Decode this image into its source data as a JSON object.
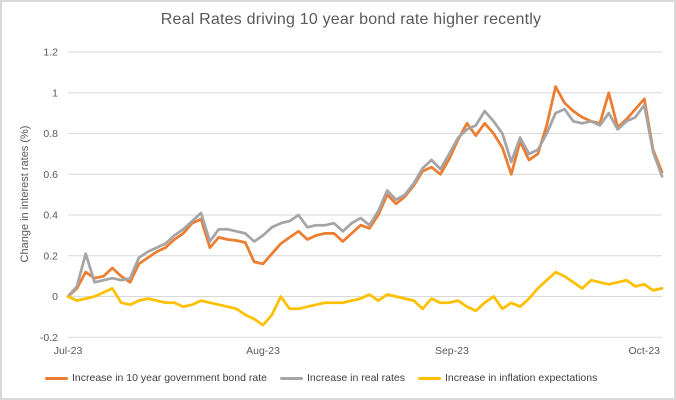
{
  "chart_data": {
    "type": "line",
    "title": "Real Rates driving 10 year bond rate higher recently",
    "ylabel": "Change in interest rates (%)",
    "xlabel": "",
    "ylim": [
      -0.2,
      1.2
    ],
    "ytick_step": 0.2,
    "yticks": [
      "1.2",
      "1",
      "0.8",
      "0.6",
      "0.4",
      "0.2",
      "0",
      "-0.2"
    ],
    "xticks": [
      {
        "label": "Jul-23",
        "index": 0
      },
      {
        "label": "Aug-23",
        "index": 22
      },
      {
        "label": "Sep-23",
        "index": 43.3
      },
      {
        "label": "Oct-23",
        "index": 65
      }
    ],
    "grid": true,
    "legend_position": "bottom",
    "series": [
      {
        "id": "bond-rate",
        "name": "Increase in 10 year government bond rate",
        "color": "#ED7D31",
        "values": [
          0.0,
          0.04,
          0.12,
          0.09,
          0.1,
          0.14,
          0.1,
          0.07,
          0.16,
          0.19,
          0.22,
          0.24,
          0.28,
          0.31,
          0.36,
          0.38,
          0.24,
          0.29,
          0.28,
          0.275,
          0.265,
          0.17,
          0.16,
          0.21,
          0.26,
          0.29,
          0.32,
          0.28,
          0.3,
          0.31,
          0.31,
          0.27,
          0.31,
          0.35,
          0.335,
          0.4,
          0.5,
          0.455,
          0.49,
          0.545,
          0.615,
          0.635,
          0.6,
          0.675,
          0.77,
          0.85,
          0.79,
          0.85,
          0.8,
          0.73,
          0.6,
          0.76,
          0.67,
          0.7,
          0.84,
          1.03,
          0.95,
          0.91,
          0.88,
          0.86,
          0.85,
          1.0,
          0.83,
          0.87,
          0.92,
          0.97,
          0.72,
          0.61
        ]
      },
      {
        "id": "real-rates",
        "name": "Increase in real rates",
        "color": "#A5A5A5",
        "values": [
          0.0,
          0.05,
          0.21,
          0.07,
          0.08,
          0.09,
          0.08,
          0.09,
          0.19,
          0.22,
          0.24,
          0.26,
          0.3,
          0.33,
          0.37,
          0.41,
          0.27,
          0.33,
          0.33,
          0.32,
          0.31,
          0.27,
          0.3,
          0.34,
          0.36,
          0.37,
          0.4,
          0.34,
          0.35,
          0.35,
          0.36,
          0.32,
          0.36,
          0.385,
          0.35,
          0.42,
          0.52,
          0.475,
          0.5,
          0.555,
          0.63,
          0.67,
          0.625,
          0.7,
          0.78,
          0.82,
          0.84,
          0.91,
          0.86,
          0.8,
          0.66,
          0.78,
          0.7,
          0.72,
          0.8,
          0.9,
          0.92,
          0.86,
          0.85,
          0.86,
          0.84,
          0.9,
          0.82,
          0.86,
          0.88,
          0.94,
          0.71,
          0.59
        ]
      },
      {
        "id": "inflation-expectations",
        "name": "Increase in inflation expectations",
        "color": "#FFC000",
        "values": [
          0.0,
          -0.02,
          -0.01,
          0.0,
          0.02,
          0.04,
          -0.03,
          -0.04,
          -0.02,
          -0.01,
          -0.02,
          -0.03,
          -0.03,
          -0.05,
          -0.04,
          -0.02,
          -0.03,
          -0.04,
          -0.05,
          -0.06,
          -0.09,
          -0.11,
          -0.14,
          -0.09,
          0.0,
          -0.06,
          -0.06,
          -0.05,
          -0.04,
          -0.03,
          -0.03,
          -0.03,
          -0.02,
          -0.01,
          0.01,
          -0.02,
          0.01,
          0.0,
          -0.01,
          -0.02,
          -0.06,
          -0.01,
          -0.03,
          -0.03,
          -0.02,
          -0.05,
          -0.07,
          -0.03,
          0.0,
          -0.06,
          -0.03,
          -0.05,
          -0.01,
          0.04,
          0.08,
          0.12,
          0.1,
          0.07,
          0.04,
          0.08,
          0.07,
          0.06,
          0.07,
          0.08,
          0.05,
          0.06,
          0.03,
          0.04
        ]
      }
    ]
  },
  "palette": {
    "gridline": "#D9D9D9",
    "axis_line": "#D9D9D9",
    "axis_text": "#595959",
    "title_text": "#595959",
    "legend_text": "#404040",
    "card_border": "#D9D9D9",
    "background": "#FFFFFF"
  }
}
